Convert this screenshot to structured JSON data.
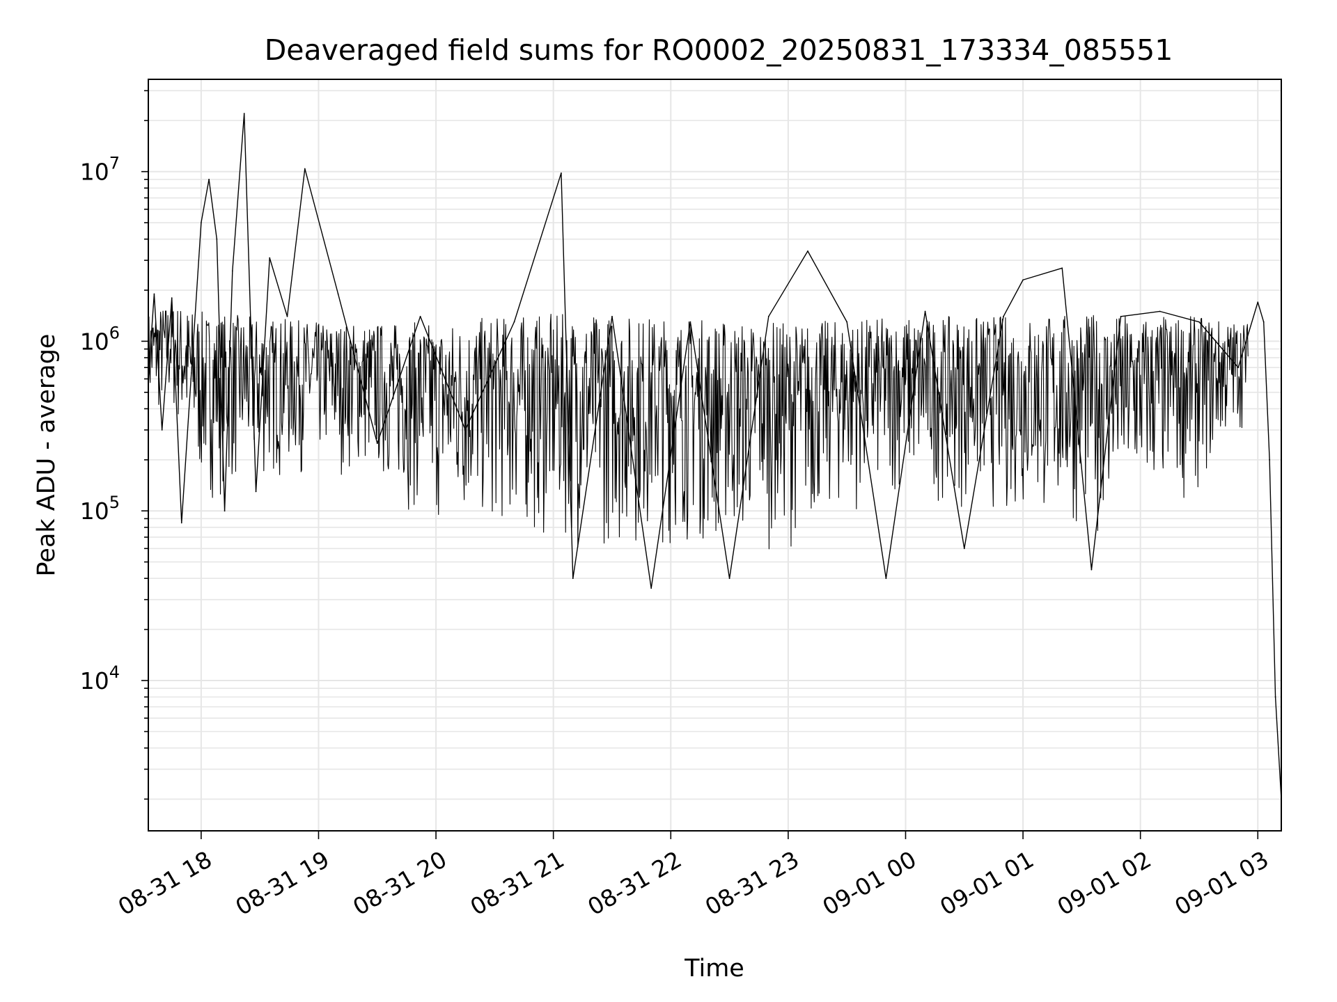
{
  "chart_data": {
    "type": "line",
    "title": "Deaveraged field sums for RO0002_20250831_173334_085551",
    "xlabel": "Time",
    "ylabel": "Peak ADU - average",
    "yscale": "log",
    "ylim": [
      1300,
      35000000
    ],
    "xlim": [
      "2025-08-31T17:33",
      "2025-09-01T03:12"
    ],
    "grid": true,
    "line_color": "#000000",
    "grid_color": "#e6e6e6",
    "x_ticks": [
      {
        "value": "2025-08-31T18:00",
        "label": "08-31 18"
      },
      {
        "value": "2025-08-31T19:00",
        "label": "08-31 19"
      },
      {
        "value": "2025-08-31T20:00",
        "label": "08-31 20"
      },
      {
        "value": "2025-08-31T21:00",
        "label": "08-31 21"
      },
      {
        "value": "2025-08-31T22:00",
        "label": "08-31 22"
      },
      {
        "value": "2025-08-31T23:00",
        "label": "08-31 23"
      },
      {
        "value": "2025-09-01T00:00",
        "label": "09-01 00"
      },
      {
        "value": "2025-09-01T01:00",
        "label": "09-01 01"
      },
      {
        "value": "2025-09-01T02:00",
        "label": "09-01 02"
      },
      {
        "value": "2025-09-01T03:00",
        "label": "09-01 03"
      }
    ],
    "y_ticks": [
      {
        "value": 10000,
        "base": "10",
        "exp": "4"
      },
      {
        "value": 100000,
        "base": "10",
        "exp": "5"
      },
      {
        "value": 1000000,
        "base": "10",
        "exp": "6"
      },
      {
        "value": 10000000,
        "base": "10",
        "exp": "7"
      }
    ],
    "series": [
      {
        "x": [
          "2025-08-31T17:33",
          "2025-08-31T17:36",
          "2025-08-31T17:40",
          "2025-08-31T17:45",
          "2025-08-31T17:50",
          "2025-08-31T17:55",
          "2025-08-31T18:00",
          "2025-08-31T18:04",
          "2025-08-31T18:08",
          "2025-08-31T18:12",
          "2025-08-31T18:16",
          "2025-08-31T18:22",
          "2025-08-31T18:28",
          "2025-08-31T18:35",
          "2025-08-31T18:44",
          "2025-08-31T18:53",
          "2025-08-31T19:10",
          "2025-08-31T19:30",
          "2025-08-31T19:52",
          "2025-08-31T20:15",
          "2025-08-31T20:40",
          "2025-08-31T21:04",
          "2025-08-31T21:10",
          "2025-08-31T21:30",
          "2025-08-31T21:50",
          "2025-08-31T22:10",
          "2025-08-31T22:30",
          "2025-08-31T22:50",
          "2025-08-31T23:10",
          "2025-08-31T23:30",
          "2025-08-31T23:50",
          "2025-09-01T00:10",
          "2025-09-01T00:30",
          "2025-09-01T00:50",
          "2025-09-01T01:00",
          "2025-09-01T01:20",
          "2025-09-01T01:35",
          "2025-09-01T01:50",
          "2025-09-01T02:10",
          "2025-09-01T02:30",
          "2025-09-01T02:50",
          "2025-09-01T03:00",
          "2025-09-01T03:03",
          "2025-09-01T03:06",
          "2025-09-01T03:09",
          "2025-09-01T03:12"
        ],
        "y": [
          600000,
          1900000,
          300000,
          1800000,
          85000,
          650000,
          5000000,
          9000000,
          4000000,
          100000,
          2600000,
          22000000,
          130000,
          3100000,
          1400000,
          10400000,
          1900000,
          250000,
          1400000,
          300000,
          1300000,
          9800000,
          40000,
          1400000,
          35000,
          1300000,
          40000,
          1400000,
          3400000,
          1300000,
          40000,
          1500000,
          60000,
          1400000,
          2300000,
          2700000,
          45000,
          1400000,
          1500000,
          1300000,
          700000,
          1700000,
          1300000,
          200000,
          8000,
          2000
        ]
      }
    ],
    "envelope": {
      "x": [
        "2025-08-31T17:33",
        "2025-08-31T17:45",
        "2025-08-31T18:00",
        "2025-08-31T18:30",
        "2025-08-31T19:00",
        "2025-08-31T19:30",
        "2025-08-31T20:00",
        "2025-08-31T20:30",
        "2025-08-31T21:00",
        "2025-08-31T21:30",
        "2025-08-31T22:00",
        "2025-08-31T22:30",
        "2025-08-31T23:00",
        "2025-08-31T23:30",
        "2025-09-01T00:00",
        "2025-09-01T00:30",
        "2025-09-01T01:00",
        "2025-09-01T01:30",
        "2025-09-01T02:00",
        "2025-09-01T02:30",
        "2025-09-01T02:55"
      ],
      "upper": [
        1500000,
        1700000,
        1500000,
        1400000,
        1300000,
        1300000,
        1300000,
        1400000,
        1450000,
        1450000,
        1400000,
        1350000,
        1300000,
        1350000,
        1400000,
        1400000,
        1450000,
        1450000,
        1450000,
        1400000,
        1300000
      ],
      "lower": [
        300000,
        350000,
        110000,
        130000,
        170000,
        140000,
        70000,
        70000,
        60000,
        55000,
        60000,
        55000,
        60000,
        90000,
        120000,
        100000,
        80000,
        70000,
        90000,
        120000,
        350000
      ]
    }
  }
}
